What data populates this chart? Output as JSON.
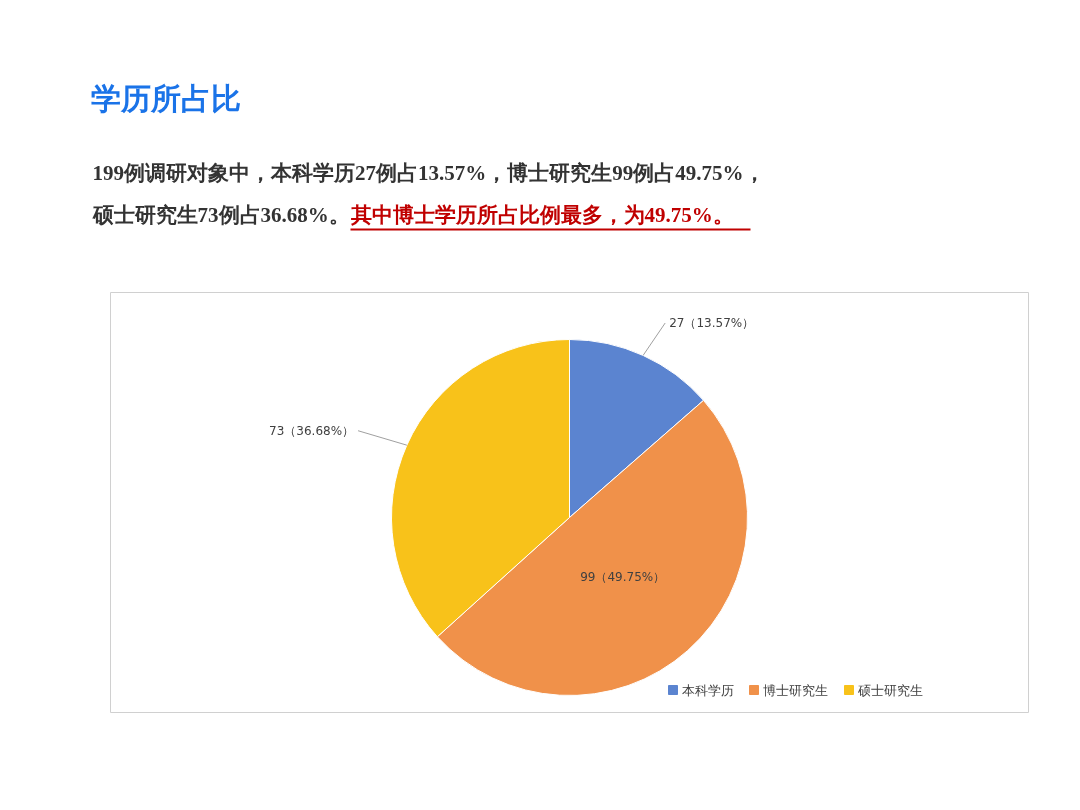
{
  "chart_data": {
    "type": "pie",
    "title": "学历所占比",
    "annotations": [
      "199例调研对象中，本科学历27例占13.57%，博士研究生99例占49.75%，",
      "硕士研究生73例占36.68%。",
      "其中博士学历所占比例最多，为49.75%。"
    ],
    "categories": [
      "本科学历",
      "博士研究生",
      "硕士研究生"
    ],
    "values": [
      27,
      99,
      73
    ],
    "value_labels": [
      "27（13.57%）",
      "99（49.75%）",
      "73（36.68%）"
    ],
    "colors": [
      "#5b84d0",
      "#f0914a",
      "#f8c21a"
    ],
    "legend": "bottom"
  }
}
